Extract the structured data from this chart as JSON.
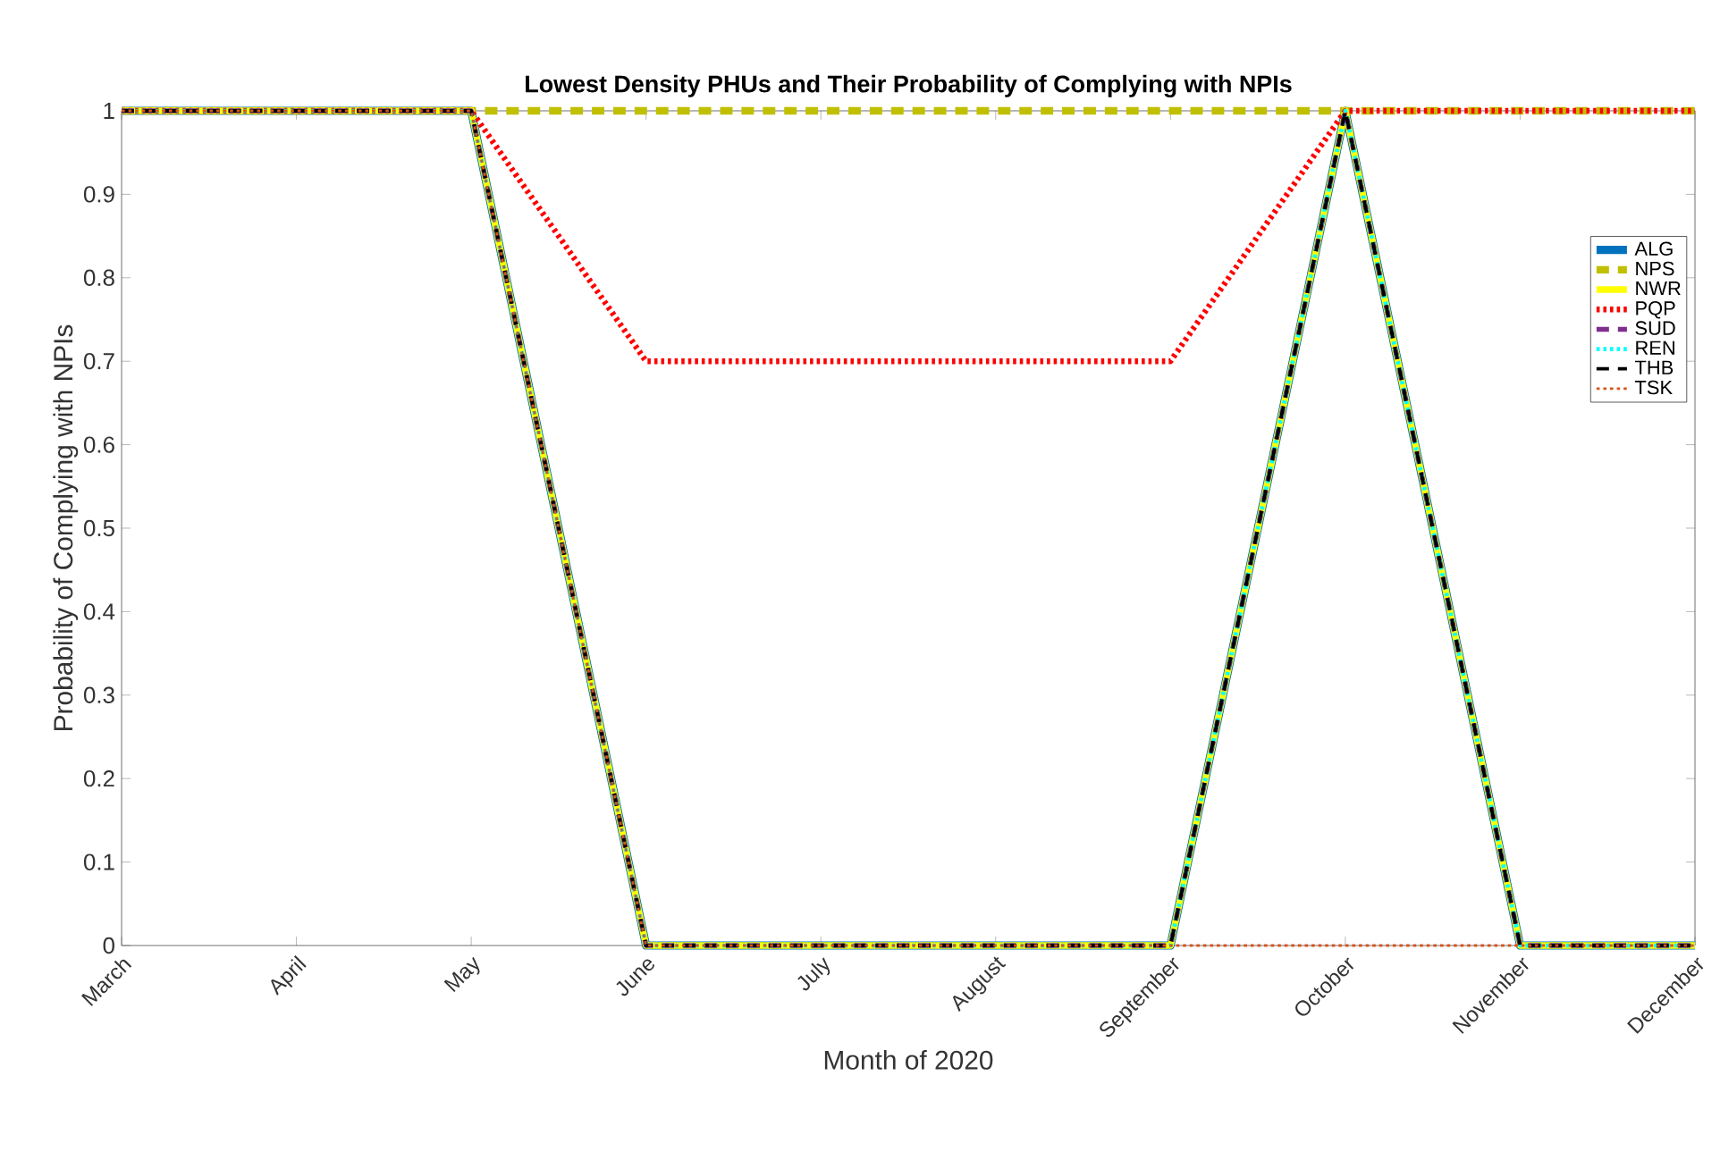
{
  "chart_data": {
    "type": "line",
    "title": "Lowest Density PHUs and Their Probability of Complying with NPIs",
    "xlabel": "Month of 2020",
    "ylabel": "Probability of Complying with NPIs",
    "categories": [
      "March",
      "April",
      "May",
      "June",
      "July",
      "August",
      "September",
      "October",
      "November",
      "December"
    ],
    "series": [
      {
        "name": "ALG",
        "color": "#0072bd",
        "line_style": "solid",
        "values": [
          1,
          1,
          1,
          0,
          0,
          0,
          0,
          1,
          0,
          0
        ]
      },
      {
        "name": "NPS",
        "color": "#c0c000",
        "line_style": "dashed",
        "values": [
          1,
          1,
          1,
          1,
          1,
          1,
          1,
          1,
          1,
          1
        ]
      },
      {
        "name": "NWR",
        "color": "#ffff00",
        "line_style": "solid",
        "values": [
          1,
          1,
          1,
          0,
          0,
          0,
          0,
          1,
          0,
          0
        ]
      },
      {
        "name": "PQP",
        "color": "#ff0000",
        "line_style": "dotted",
        "values": [
          1,
          1,
          1,
          0.7,
          0.7,
          0.7,
          0.7,
          1,
          1,
          1
        ]
      },
      {
        "name": "SUD",
        "color": "#7e2f8e",
        "line_style": "dashed",
        "values": [
          1,
          1,
          1,
          0,
          0,
          0,
          0,
          1,
          0,
          0
        ]
      },
      {
        "name": "REN",
        "color": "#00ffff",
        "line_style": "dotted",
        "values": [
          1,
          1,
          1,
          0,
          0,
          0,
          0,
          1,
          0,
          0
        ]
      },
      {
        "name": "THB",
        "color": "#000000",
        "line_style": "dashed",
        "values": [
          1,
          1,
          1,
          0,
          0,
          0,
          0,
          1,
          0,
          0
        ]
      },
      {
        "name": "TSK",
        "color": "#d95319",
        "line_style": "dotted",
        "values": [
          1,
          1,
          1,
          0,
          0,
          0,
          0,
          0,
          0,
          0
        ]
      }
    ],
    "ylim": [
      0,
      1
    ],
    "yticks": [
      0,
      0.1,
      0.2,
      0.3,
      0.4,
      0.5,
      0.6,
      0.7,
      0.8,
      0.9,
      1
    ],
    "grid": false,
    "legend": "right",
    "marker": "none"
  }
}
